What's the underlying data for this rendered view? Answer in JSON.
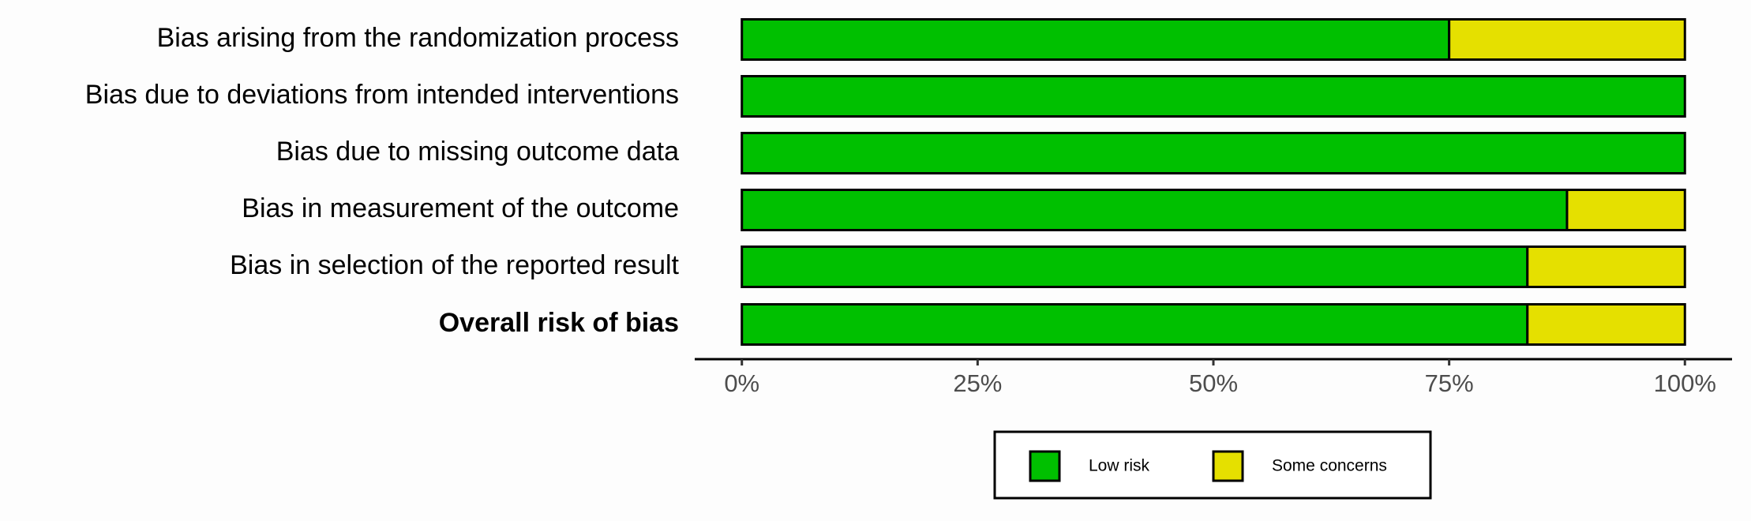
{
  "chart_data": {
    "type": "stacked-bar-horizontal",
    "categories": [
      "Bias arising from the randomization process",
      "Bias due to deviations from intended interventions",
      "Bias due to missing outcome data",
      "Bias in measurement of the outcome",
      "Bias in selection of the reported result",
      "Overall risk of bias"
    ],
    "series": [
      {
        "name": "Low risk",
        "color": "#00c000",
        "values": [
          75,
          100,
          100,
          87.5,
          83.3,
          83.3
        ]
      },
      {
        "name": "Some concerns",
        "color": "#e5e000",
        "values": [
          25,
          0,
          0,
          12.5,
          16.7,
          16.7
        ]
      }
    ],
    "xlim": [
      -5,
      105
    ],
    "xticks": [
      {
        "value": 0,
        "label": "0%"
      },
      {
        "value": 25,
        "label": "25%"
      },
      {
        "value": 50,
        "label": "50%"
      },
      {
        "value": 75,
        "label": "75%"
      },
      {
        "value": 100,
        "label": "100%"
      }
    ]
  }
}
